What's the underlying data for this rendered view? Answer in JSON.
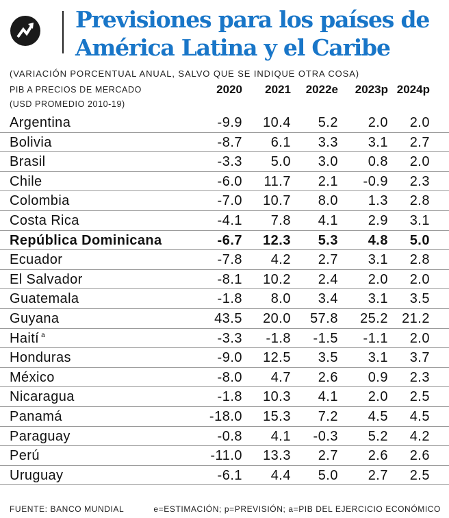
{
  "header": {
    "title_line1": "Previsiones para los países de",
    "title_line2": "América Latina y el Caribe",
    "logo_icon": "trend-arrow-icon",
    "title_color": "#1976c8"
  },
  "subtitle": "(VARIACIÓN PORCENTUAL ANUAL, SALVO QUE SE INDIQUE OTRA COSA)",
  "column_header": {
    "label_line1": "PIB A PRECIOS DE MERCADO",
    "label_line2": "(USD PROMEDIO 2010-19)",
    "years": [
      "2020",
      "2021",
      "2022e",
      "2023p",
      "2024p"
    ]
  },
  "rows": [
    {
      "country": "Argentina",
      "values": [
        "-9.9",
        "10.4",
        "5.2",
        "2.0",
        "2.0"
      ]
    },
    {
      "country": "Bolivia",
      "values": [
        "-8.7",
        "6.1",
        "3.3",
        "3.1",
        "2.7"
      ]
    },
    {
      "country": "Brasil",
      "values": [
        "-3.3",
        "5.0",
        "3.0",
        "0.8",
        "2.0"
      ]
    },
    {
      "country": "Chile",
      "values": [
        "-6.0",
        "11.7",
        "2.1",
        "-0.9",
        "2.3"
      ]
    },
    {
      "country": "Colombia",
      "values": [
        "-7.0",
        "10.7",
        "8.0",
        "1.3",
        "2.8"
      ]
    },
    {
      "country": "Costa Rica",
      "values": [
        "-4.1",
        "7.8",
        "4.1",
        "2.9",
        "3.1"
      ]
    },
    {
      "country": "República Dominicana",
      "bold": true,
      "values": [
        "-6.7",
        "12.3",
        "5.3",
        "4.8",
        "5.0"
      ]
    },
    {
      "country": "Ecuador",
      "values": [
        "-7.8",
        "4.2",
        "2.7",
        "3.1",
        "2.8"
      ]
    },
    {
      "country": "El Salvador",
      "values": [
        "-8.1",
        "10.2",
        "2.4",
        "2.0",
        "2.0"
      ]
    },
    {
      "country": "Guatemala",
      "values": [
        "-1.8",
        "8.0",
        "3.4",
        "3.1",
        "3.5"
      ]
    },
    {
      "country": "Guyana",
      "values": [
        "43.5",
        "20.0",
        "57.8",
        "25.2",
        "21.2"
      ]
    },
    {
      "country": "Haití",
      "note": "a",
      "values": [
        "-3.3",
        "-1.8",
        "-1.5",
        "-1.1",
        "2.0"
      ]
    },
    {
      "country": "Honduras",
      "values": [
        "-9.0",
        "12.5",
        "3.5",
        "3.1",
        "3.7"
      ]
    },
    {
      "country": "México",
      "values": [
        "-8.0",
        "4.7",
        "2.6",
        "0.9",
        "2.3"
      ]
    },
    {
      "country": "Nicaragua",
      "values": [
        "-1.8",
        "10.3",
        "4.1",
        "2.0",
        "2.5"
      ]
    },
    {
      "country": "Panamá",
      "values": [
        "-18.0",
        "15.3",
        "7.2",
        "4.5",
        "4.5"
      ]
    },
    {
      "country": "Paraguay",
      "values": [
        "-0.8",
        "4.1",
        "-0.3",
        "5.2",
        "4.2"
      ]
    },
    {
      "country": "Perú",
      "values": [
        "-11.0",
        "13.3",
        "2.7",
        "2.6",
        "2.6"
      ]
    },
    {
      "country": "Uruguay",
      "values": [
        "-6.1",
        "4.4",
        "5.0",
        "2.7",
        "2.5"
      ]
    }
  ],
  "footer": {
    "source": "FUENTE: BANCO MUNDIAL",
    "notes": "e=ESTIMACIÓN; p=PREVISIÓN; a=PIB DEL EJERCICIO ECONÓMICO"
  }
}
